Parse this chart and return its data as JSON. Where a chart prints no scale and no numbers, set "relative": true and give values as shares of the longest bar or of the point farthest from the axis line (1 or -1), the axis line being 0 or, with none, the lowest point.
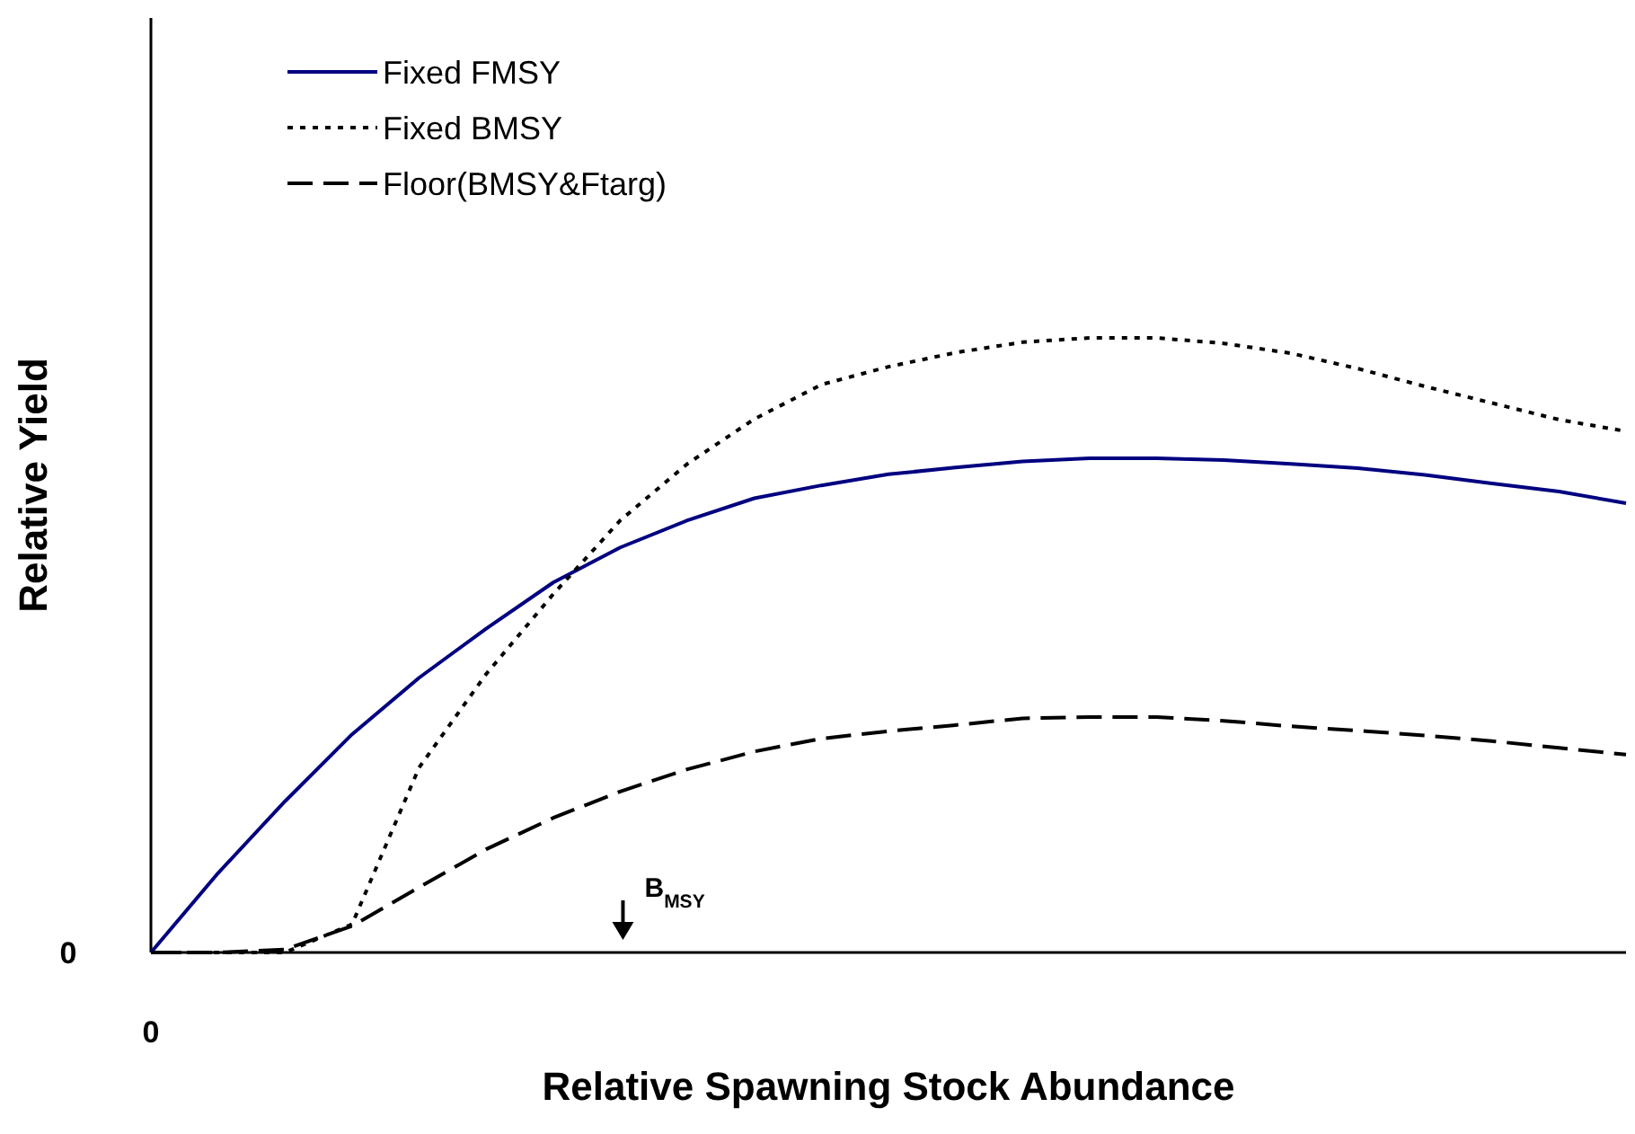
{
  "chart_data": {
    "type": "line",
    "relative": true,
    "xlabel": "Relative Spawning Stock Abundance",
    "ylabel": "Relative Yield",
    "legend": "top left",
    "categories": [
      null,
      null,
      null,
      null,
      null,
      null,
      null,
      null,
      null,
      null,
      null,
      null,
      null,
      null,
      null,
      null,
      null,
      null,
      null,
      null,
      null,
      null,
      null
    ],
    "series": [
      {
        "name": "Fixed FMSY",
        "color": "#000080",
        "line_style": "solid",
        "values": [
          0,
          0.129,
          0.246,
          0.355,
          0.447,
          0.527,
          0.602,
          0.659,
          0.703,
          0.739,
          0.76,
          0.778,
          0.789,
          0.799,
          0.804,
          0.804,
          0.801,
          0.795,
          0.788,
          0.777,
          0.763,
          0.75,
          0.731
        ]
      },
      {
        "name": "Fixed BMSY",
        "color": "#000000",
        "line_style": "dotted",
        "values": [
          0,
          0,
          0,
          0.046,
          0.301,
          0.453,
          0.583,
          0.703,
          0.795,
          0.868,
          0.924,
          0.953,
          0.976,
          0.993,
          1,
          1,
          0.991,
          0.975,
          0.95,
          0.921,
          0.894,
          0.867,
          0.848
        ]
      },
      {
        "name": "Floor(BMSY&Ftarg)",
        "color": "#000000",
        "line_style": "dashed",
        "values": [
          0,
          0,
          0.005,
          0.043,
          0.106,
          0.168,
          0.219,
          0.262,
          0.298,
          0.327,
          0.348,
          0.36,
          0.37,
          0.381,
          0.383,
          0.383,
          0.377,
          0.368,
          0.361,
          0.353,
          0.344,
          0.333,
          0.322
        ]
      }
    ],
    "annotations": [
      "B$_{MSY}$",
      "0",
      "0"
    ]
  }
}
